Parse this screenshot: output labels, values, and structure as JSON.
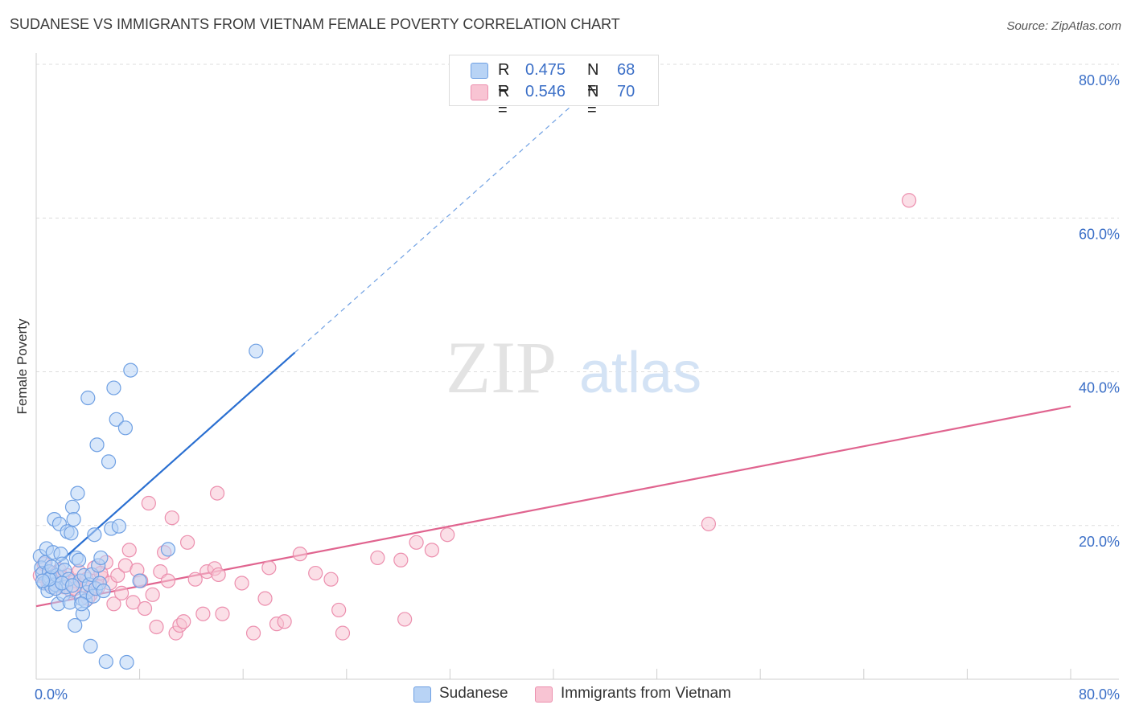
{
  "title": "SUDANESE VS IMMIGRANTS FROM VIETNAM FEMALE POVERTY CORRELATION CHART",
  "source": "Source: ZipAtlas.com",
  "watermark": {
    "part1": "ZIP",
    "part2": "atlas"
  },
  "legend_top": [
    {
      "r_label": "R =",
      "r_value": "0.475",
      "n_label": "N =",
      "n_value": "68"
    },
    {
      "r_label": "R =",
      "r_value": "0.546",
      "n_label": "N =",
      "n_value": "70"
    }
  ],
  "legend_bottom": [
    "Sudanese",
    "Immigrants from Vietnam"
  ],
  "colors": {
    "sudanese_fill": "#b8d3f5",
    "sudanese_stroke": "#6fa0e3",
    "sudanese_line": "#2a6fd1",
    "vietnam_fill": "#f8c4d3",
    "vietnam_stroke": "#ec8fae",
    "vietnam_line": "#e0648f",
    "tick": "#3b6fc7",
    "grid": "#dddddd"
  },
  "chart_data": {
    "type": "scatter",
    "title": "SUDANESE VS IMMIGRANTS FROM VIETNAM FEMALE POVERTY CORRELATION CHART",
    "xlabel": "",
    "ylabel": "Female Poverty",
    "xlim": [
      0,
      80
    ],
    "ylim": [
      0,
      80
    ],
    "x_tick_labels": [
      "0.0%",
      "80.0%"
    ],
    "y_tick_labels": [
      {
        "value": 20,
        "label": "20.0%"
      },
      {
        "value": 40,
        "label": "40.0%"
      },
      {
        "value": 60,
        "label": "60.0%"
      },
      {
        "value": 80,
        "label": "80.0%"
      }
    ],
    "series": [
      {
        "name": "Sudanese",
        "R": 0.475,
        "N": 68,
        "trend": {
          "x0": 0,
          "y0": 12.5,
          "x1": 20,
          "y1": 42.5,
          "extend_to_x": 43
        },
        "points": [
          [
            0.3,
            16.0
          ],
          [
            0.4,
            14.5
          ],
          [
            0.5,
            13.8
          ],
          [
            0.6,
            12.5
          ],
          [
            0.7,
            15.2
          ],
          [
            0.8,
            17.0
          ],
          [
            0.9,
            11.5
          ],
          [
            1.0,
            14.0
          ],
          [
            1.1,
            13.2
          ],
          [
            1.2,
            12.0
          ],
          [
            1.3,
            16.5
          ],
          [
            1.4,
            20.8
          ],
          [
            1.5,
            12.3
          ],
          [
            1.6,
            13.5
          ],
          [
            1.7,
            9.8
          ],
          [
            1.8,
            20.2
          ],
          [
            1.9,
            16.3
          ],
          [
            2.0,
            15.0
          ],
          [
            2.1,
            11.0
          ],
          [
            2.2,
            14.2
          ],
          [
            2.3,
            12.0
          ],
          [
            2.4,
            19.2
          ],
          [
            2.5,
            13.0
          ],
          [
            2.6,
            10.0
          ],
          [
            2.7,
            19.0
          ],
          [
            2.8,
            22.4
          ],
          [
            2.9,
            20.8
          ],
          [
            3.0,
            7.0
          ],
          [
            3.1,
            15.8
          ],
          [
            3.2,
            24.2
          ],
          [
            3.3,
            15.5
          ],
          [
            3.4,
            12.8
          ],
          [
            3.5,
            10.5
          ],
          [
            3.6,
            8.5
          ],
          [
            3.7,
            13.5
          ],
          [
            3.8,
            10.2
          ],
          [
            3.9,
            11.3
          ],
          [
            4.0,
            36.6
          ],
          [
            4.1,
            12.3
          ],
          [
            4.2,
            4.3
          ],
          [
            4.3,
            13.6
          ],
          [
            4.4,
            10.8
          ],
          [
            4.5,
            18.8
          ],
          [
            4.6,
            11.8
          ],
          [
            4.7,
            30.5
          ],
          [
            4.8,
            14.8
          ],
          [
            4.9,
            12.5
          ],
          [
            5.0,
            15.8
          ],
          [
            5.2,
            11.5
          ],
          [
            5.4,
            2.3
          ],
          [
            5.6,
            28.3
          ],
          [
            5.8,
            19.6
          ],
          [
            6.0,
            37.9
          ],
          [
            6.2,
            33.8
          ],
          [
            6.4,
            19.9
          ],
          [
            6.9,
            32.7
          ],
          [
            7.0,
            2.2
          ],
          [
            7.3,
            40.2
          ],
          [
            8.0,
            12.8
          ],
          [
            10.2,
            16.9
          ],
          [
            17.0,
            42.7
          ],
          [
            1.5,
            11.8
          ],
          [
            2.0,
            12.5
          ],
          [
            2.8,
            12.2
          ],
          [
            1.0,
            13.0
          ],
          [
            0.5,
            12.8
          ],
          [
            1.2,
            14.6
          ],
          [
            3.5,
            9.8
          ]
        ]
      },
      {
        "name": "Immigrants from Vietnam",
        "R": 0.546,
        "N": 70,
        "trend": {
          "x0": 0,
          "y0": 9.5,
          "x1": 80,
          "y1": 35.5
        },
        "points": [
          [
            0.3,
            13.5
          ],
          [
            0.6,
            15.0
          ],
          [
            0.9,
            12.5
          ],
          [
            1.2,
            13.8
          ],
          [
            1.5,
            11.8
          ],
          [
            1.8,
            14.2
          ],
          [
            2.1,
            12.0
          ],
          [
            2.4,
            13.5
          ],
          [
            2.7,
            11.5
          ],
          [
            3.0,
            12.8
          ],
          [
            3.3,
            14.0
          ],
          [
            3.6,
            12.2
          ],
          [
            3.9,
            13.0
          ],
          [
            4.2,
            11.0
          ],
          [
            4.5,
            14.5
          ],
          [
            4.8,
            12.0
          ],
          [
            5.1,
            13.2
          ],
          [
            5.4,
            15.2
          ],
          [
            5.7,
            12.5
          ],
          [
            6.0,
            9.8
          ],
          [
            6.3,
            13.5
          ],
          [
            6.6,
            11.2
          ],
          [
            6.9,
            14.8
          ],
          [
            7.2,
            16.8
          ],
          [
            7.5,
            10.0
          ],
          [
            7.8,
            14.2
          ],
          [
            8.1,
            12.8
          ],
          [
            8.4,
            9.2
          ],
          [
            8.7,
            22.9
          ],
          [
            9.0,
            11.0
          ],
          [
            9.3,
            6.8
          ],
          [
            9.6,
            14.0
          ],
          [
            9.9,
            16.5
          ],
          [
            10.2,
            12.8
          ],
          [
            10.5,
            21.0
          ],
          [
            10.8,
            6.0
          ],
          [
            11.1,
            7.0
          ],
          [
            11.4,
            7.5
          ],
          [
            11.7,
            17.8
          ],
          [
            12.3,
            13.0
          ],
          [
            12.9,
            8.5
          ],
          [
            13.2,
            14.0
          ],
          [
            13.8,
            14.4
          ],
          [
            14.0,
            24.2
          ],
          [
            14.1,
            13.6
          ],
          [
            14.4,
            8.5
          ],
          [
            15.9,
            12.5
          ],
          [
            16.8,
            6.0
          ],
          [
            17.7,
            10.5
          ],
          [
            18.0,
            14.5
          ],
          [
            18.6,
            7.2
          ],
          [
            19.2,
            7.5
          ],
          [
            20.4,
            16.3
          ],
          [
            21.6,
            13.8
          ],
          [
            22.8,
            13.0
          ],
          [
            23.4,
            9.0
          ],
          [
            23.7,
            6.0
          ],
          [
            26.4,
            15.8
          ],
          [
            28.2,
            15.5
          ],
          [
            28.5,
            7.8
          ],
          [
            29.4,
            17.8
          ],
          [
            30.6,
            16.8
          ],
          [
            31.8,
            18.8
          ],
          [
            52.0,
            20.2
          ],
          [
            67.5,
            62.3
          ],
          [
            2.0,
            13.2
          ],
          [
            3.0,
            11.8
          ],
          [
            4.0,
            10.5
          ],
          [
            1.0,
            12.4
          ],
          [
            5.0,
            13.8
          ]
        ]
      }
    ]
  }
}
